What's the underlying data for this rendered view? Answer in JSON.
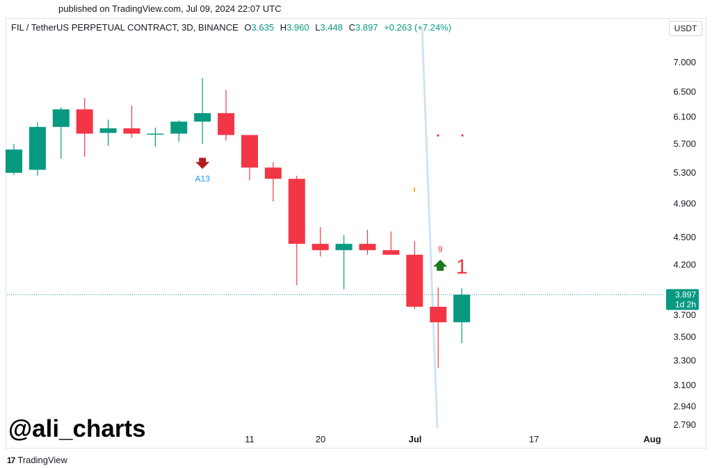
{
  "header": {
    "published": "published on TradingView.com, Jul 09, 2024 22:07 UTC"
  },
  "legend": {
    "symbol": "FIL / TetherUS PERPETUAL CONTRACT, 3D, BINANCE",
    "o_label": "O",
    "o_value": "3.635",
    "h_label": "H",
    "h_value": "3.960",
    "l_label": "L",
    "l_value": "3.448",
    "c_label": "C",
    "c_value": "3.897",
    "change": "+0.263 (+7.24%)"
  },
  "currency": "USDT",
  "watermark": "@ali_charts",
  "brand": {
    "logo": "17",
    "name": "TradingView"
  },
  "colors": {
    "up": "#089981",
    "down": "#f23645",
    "arrow_down": "#b71c1c",
    "arrow_up": "#1b7a1b",
    "annotation_blue": "#2196f3",
    "trendline": "#cfe3f7"
  },
  "chart_data": {
    "type": "candlestick",
    "timeframe": "3D",
    "yscale": "log",
    "ylim": [
      2.79,
      7.45
    ],
    "y_ticks": [
      "7.000",
      "6.500",
      "6.100",
      "5.700",
      "5.300",
      "4.900",
      "4.500",
      "4.200",
      "3.700",
      "3.500",
      "3.300",
      "3.100",
      "2.940",
      "2.790"
    ],
    "x_ticks": [
      "11",
      "20",
      "Jul",
      "17",
      "Aug"
    ],
    "candles": [
      {
        "o": 5.3,
        "h": 5.7,
        "l": 5.27,
        "c": 5.62
      },
      {
        "o": 5.34,
        "h": 6.02,
        "l": 5.26,
        "c": 5.95
      },
      {
        "o": 5.95,
        "h": 6.25,
        "l": 5.49,
        "c": 6.22
      },
      {
        "o": 6.22,
        "h": 6.4,
        "l": 5.52,
        "c": 5.85
      },
      {
        "o": 5.86,
        "h": 6.06,
        "l": 5.67,
        "c": 5.93
      },
      {
        "o": 5.93,
        "h": 6.28,
        "l": 5.79,
        "c": 5.85
      },
      {
        "o": 5.84,
        "h": 5.94,
        "l": 5.66,
        "c": 5.85
      },
      {
        "o": 5.85,
        "h": 6.05,
        "l": 5.73,
        "c": 6.03
      },
      {
        "o": 6.03,
        "h": 6.73,
        "l": 5.7,
        "c": 6.16
      },
      {
        "o": 6.16,
        "h": 6.53,
        "l": 5.75,
        "c": 5.83
      },
      {
        "o": 5.83,
        "h": 5.83,
        "l": 5.2,
        "c": 5.37
      },
      {
        "o": 5.37,
        "h": 5.44,
        "l": 4.93,
        "c": 5.22
      },
      {
        "o": 5.22,
        "h": 5.26,
        "l": 3.99,
        "c": 4.43
      },
      {
        "o": 4.43,
        "h": 4.62,
        "l": 4.29,
        "c": 4.36
      },
      {
        "o": 4.36,
        "h": 4.53,
        "l": 3.95,
        "c": 4.43
      },
      {
        "o": 4.43,
        "h": 4.59,
        "l": 4.31,
        "c": 4.36
      },
      {
        "o": 4.36,
        "h": 4.57,
        "l": 4.31,
        "c": 4.31
      },
      {
        "o": 4.31,
        "h": 4.46,
        "l": 3.76,
        "c": 3.78
      },
      {
        "o": 3.78,
        "h": 3.97,
        "l": 3.24,
        "c": 3.635
      },
      {
        "o": 3.635,
        "h": 3.96,
        "l": 3.448,
        "c": 3.897
      }
    ],
    "last_price": {
      "value": 3.897,
      "label": "3.897",
      "countdown": "1d 2h"
    },
    "annotations": [
      {
        "type": "arrow-down",
        "candle": 8,
        "label": "A13"
      },
      {
        "type": "number",
        "candle": 18,
        "label": "9"
      },
      {
        "type": "arrow-up",
        "candle": 18
      },
      {
        "type": "number-large",
        "candle": 19,
        "label": "1"
      }
    ]
  }
}
